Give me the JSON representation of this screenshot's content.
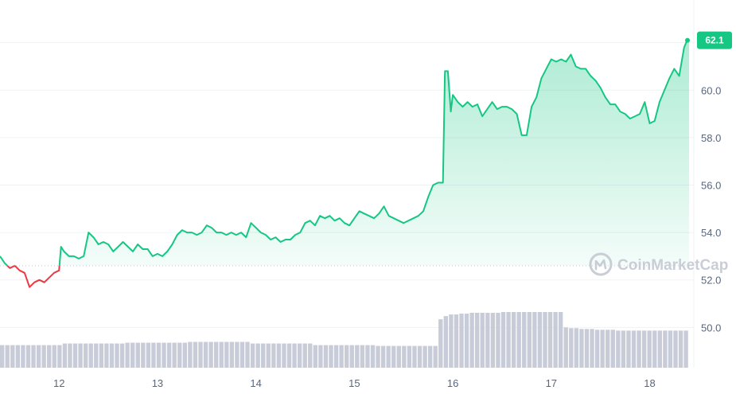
{
  "chart_data": {
    "type": "area",
    "x_ticks": [
      "12",
      "13",
      "14",
      "15",
      "16",
      "17",
      "18"
    ],
    "x_tick_positions": [
      12,
      13,
      14,
      15,
      16,
      17,
      18
    ],
    "xlim": [
      11.4,
      18.4
    ],
    "y_ticks": [
      "50.0",
      "52.0",
      "54.0",
      "56.0",
      "58.0",
      "60.0"
    ],
    "y_tick_values": [
      50,
      52,
      54,
      56,
      58,
      60
    ],
    "ylim": [
      48.3,
      63.8
    ],
    "baseline": 52.6,
    "current_price_label": "62.1",
    "current_price": 62.1,
    "watermark": "CoinMarketCap",
    "colors": {
      "up": "#16c784",
      "down": "#ea3943",
      "volume": "#c8ccd8",
      "badge": "#16c784",
      "grid": "#eff2f5",
      "tick_text": "#58667e"
    },
    "series": [
      {
        "values": [
          [
            11.4,
            53.0
          ],
          [
            11.45,
            52.7
          ],
          [
            11.5,
            52.5
          ],
          [
            11.55,
            52.6
          ],
          [
            11.6,
            52.4
          ],
          [
            11.65,
            52.3
          ],
          [
            11.7,
            51.7
          ],
          [
            11.75,
            51.9
          ],
          [
            11.8,
            52.0
          ],
          [
            11.85,
            51.9
          ],
          [
            11.9,
            52.1
          ],
          [
            11.95,
            52.3
          ],
          [
            12.0,
            52.4
          ],
          [
            12.02,
            53.4
          ],
          [
            12.05,
            53.2
          ],
          [
            12.1,
            53.0
          ],
          [
            12.15,
            53.0
          ],
          [
            12.2,
            52.9
          ],
          [
            12.25,
            53.0
          ],
          [
            12.3,
            54.0
          ],
          [
            12.35,
            53.8
          ],
          [
            12.4,
            53.5
          ],
          [
            12.45,
            53.6
          ],
          [
            12.5,
            53.5
          ],
          [
            12.55,
            53.2
          ],
          [
            12.6,
            53.4
          ],
          [
            12.65,
            53.6
          ],
          [
            12.7,
            53.4
          ],
          [
            12.75,
            53.2
          ],
          [
            12.8,
            53.5
          ],
          [
            12.85,
            53.3
          ],
          [
            12.9,
            53.3
          ],
          [
            12.95,
            53.0
          ],
          [
            13.0,
            53.1
          ],
          [
            13.05,
            53.0
          ],
          [
            13.1,
            53.2
          ],
          [
            13.15,
            53.5
          ],
          [
            13.2,
            53.9
          ],
          [
            13.25,
            54.1
          ],
          [
            13.3,
            54.0
          ],
          [
            13.35,
            54.0
          ],
          [
            13.4,
            53.9
          ],
          [
            13.45,
            54.0
          ],
          [
            13.5,
            54.3
          ],
          [
            13.55,
            54.2
          ],
          [
            13.6,
            54.0
          ],
          [
            13.65,
            54.0
          ],
          [
            13.7,
            53.9
          ],
          [
            13.75,
            54.0
          ],
          [
            13.8,
            53.9
          ],
          [
            13.85,
            54.0
          ],
          [
            13.9,
            53.8
          ],
          [
            13.95,
            54.4
          ],
          [
            14.0,
            54.2
          ],
          [
            14.05,
            54.0
          ],
          [
            14.1,
            53.9
          ],
          [
            14.15,
            53.7
          ],
          [
            14.2,
            53.8
          ],
          [
            14.25,
            53.6
          ],
          [
            14.3,
            53.7
          ],
          [
            14.35,
            53.7
          ],
          [
            14.4,
            53.9
          ],
          [
            14.45,
            54.0
          ],
          [
            14.5,
            54.4
          ],
          [
            14.55,
            54.5
          ],
          [
            14.6,
            54.3
          ],
          [
            14.65,
            54.7
          ],
          [
            14.7,
            54.6
          ],
          [
            14.75,
            54.7
          ],
          [
            14.8,
            54.5
          ],
          [
            14.85,
            54.6
          ],
          [
            14.9,
            54.4
          ],
          [
            14.95,
            54.3
          ],
          [
            15.0,
            54.6
          ],
          [
            15.05,
            54.9
          ],
          [
            15.1,
            54.8
          ],
          [
            15.15,
            54.7
          ],
          [
            15.2,
            54.6
          ],
          [
            15.25,
            54.8
          ],
          [
            15.3,
            55.1
          ],
          [
            15.35,
            54.7
          ],
          [
            15.4,
            54.6
          ],
          [
            15.45,
            54.5
          ],
          [
            15.5,
            54.4
          ],
          [
            15.55,
            54.5
          ],
          [
            15.6,
            54.6
          ],
          [
            15.65,
            54.7
          ],
          [
            15.7,
            54.9
          ],
          [
            15.75,
            55.5
          ],
          [
            15.8,
            56.0
          ],
          [
            15.85,
            56.1
          ],
          [
            15.9,
            56.1
          ],
          [
            15.92,
            60.8
          ],
          [
            15.95,
            60.8
          ],
          [
            15.98,
            59.1
          ],
          [
            16.0,
            59.8
          ],
          [
            16.05,
            59.5
          ],
          [
            16.1,
            59.3
          ],
          [
            16.15,
            59.5
          ],
          [
            16.2,
            59.3
          ],
          [
            16.25,
            59.4
          ],
          [
            16.3,
            58.9
          ],
          [
            16.35,
            59.2
          ],
          [
            16.4,
            59.5
          ],
          [
            16.45,
            59.2
          ],
          [
            16.5,
            59.3
          ],
          [
            16.55,
            59.3
          ],
          [
            16.6,
            59.2
          ],
          [
            16.65,
            59.0
          ],
          [
            16.7,
            58.1
          ],
          [
            16.75,
            58.1
          ],
          [
            16.8,
            59.3
          ],
          [
            16.85,
            59.7
          ],
          [
            16.9,
            60.5
          ],
          [
            16.95,
            60.9
          ],
          [
            17.0,
            61.3
          ],
          [
            17.05,
            61.2
          ],
          [
            17.1,
            61.3
          ],
          [
            17.15,
            61.2
          ],
          [
            17.2,
            61.5
          ],
          [
            17.25,
            61.0
          ],
          [
            17.3,
            60.9
          ],
          [
            17.35,
            60.9
          ],
          [
            17.4,
            60.6
          ],
          [
            17.45,
            60.4
          ],
          [
            17.5,
            60.1
          ],
          [
            17.55,
            59.7
          ],
          [
            17.6,
            59.4
          ],
          [
            17.65,
            59.4
          ],
          [
            17.7,
            59.1
          ],
          [
            17.75,
            59.0
          ],
          [
            17.8,
            58.8
          ],
          [
            17.85,
            58.9
          ],
          [
            17.9,
            59.0
          ],
          [
            17.95,
            59.5
          ],
          [
            18.0,
            58.6
          ],
          [
            18.05,
            58.7
          ],
          [
            18.1,
            59.5
          ],
          [
            18.15,
            60.0
          ],
          [
            18.2,
            60.5
          ],
          [
            18.25,
            60.9
          ],
          [
            18.3,
            60.6
          ],
          [
            18.35,
            61.8
          ],
          [
            18.38,
            62.1
          ],
          [
            18.4,
            62.1
          ]
        ]
      }
    ],
    "volume": {
      "x_start": 11.4,
      "x_end": 18.4,
      "values": [
        28,
        28,
        28,
        28,
        28,
        28,
        28,
        28,
        28,
        28,
        28,
        28,
        30,
        30,
        30,
        30,
        30,
        30,
        30,
        30,
        30,
        30,
        30,
        30,
        31,
        31,
        31,
        31,
        31,
        31,
        31,
        31,
        31,
        31,
        31,
        31,
        32,
        32,
        32,
        32,
        32,
        32,
        32,
        32,
        32,
        32,
        32,
        32,
        30,
        30,
        30,
        30,
        30,
        30,
        30,
        30,
        30,
        30,
        30,
        30,
        28,
        28,
        28,
        28,
        28,
        28,
        28,
        28,
        28,
        28,
        28,
        28,
        27,
        27,
        27,
        27,
        27,
        27,
        27,
        27,
        27,
        27,
        27,
        27,
        60,
        64,
        66,
        66,
        67,
        67,
        68,
        68,
        68,
        68,
        68,
        68,
        69,
        69,
        69,
        69,
        69,
        69,
        69,
        69,
        69,
        69,
        69,
        69,
        50,
        49,
        49,
        48,
        48,
        48,
        47,
        47,
        47,
        47,
        46,
        46,
        46,
        46,
        46,
        46,
        46,
        46,
        46,
        46,
        46,
        46,
        46,
        46
      ]
    }
  }
}
